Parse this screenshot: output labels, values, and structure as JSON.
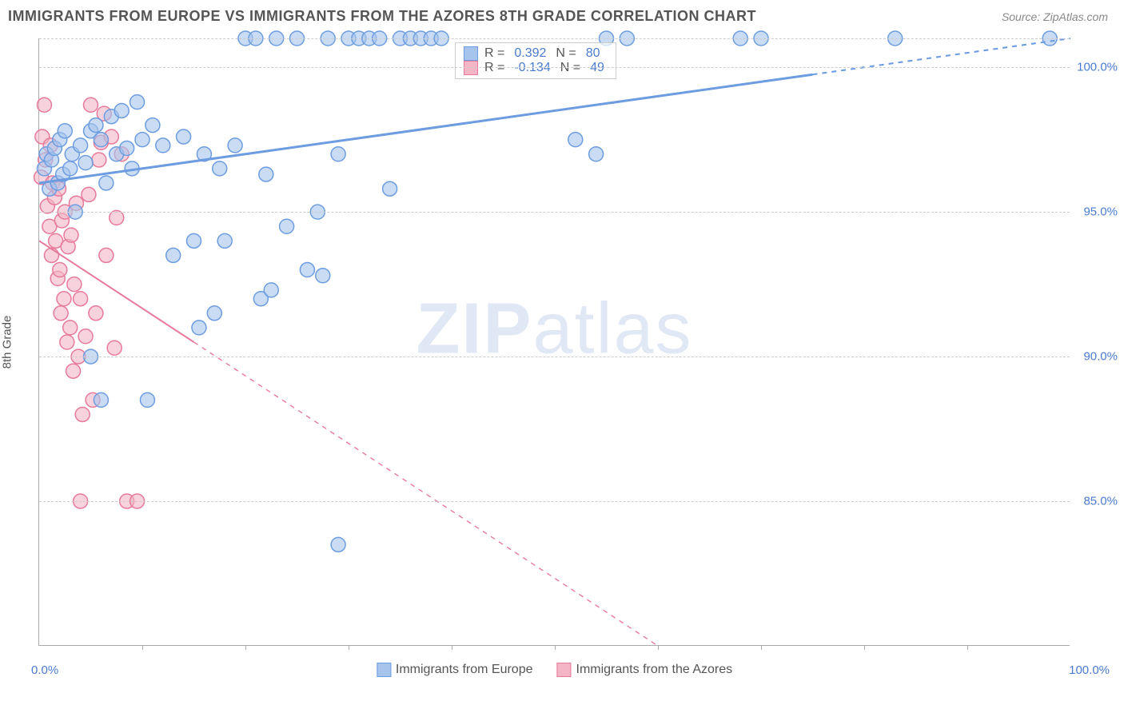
{
  "header": {
    "title": "IMMIGRANTS FROM EUROPE VS IMMIGRANTS FROM THE AZORES 8TH GRADE CORRELATION CHART",
    "source": "Source: ZipAtlas.com"
  },
  "chart": {
    "type": "scatter",
    "ylabel": "8th Grade",
    "xlim": [
      0,
      100
    ],
    "ylim": [
      80,
      101
    ],
    "x_ticks_minor": [
      10,
      20,
      30,
      40,
      50,
      60,
      70,
      80,
      90
    ],
    "y_gridlines": [
      85,
      90,
      95,
      100,
      101
    ],
    "y_tick_labels": {
      "85": "85.0%",
      "90": "90.0%",
      "95": "95.0%",
      "100": "100.0%"
    },
    "x_axis_label_left": "0.0%",
    "x_axis_label_right": "100.0%",
    "background_color": "#ffffff",
    "grid_color": "#cccccc",
    "axis_color": "#aaaaaa",
    "tick_label_color": "#4a7bd0",
    "series": [
      {
        "name": "Immigrants from Europe",
        "color_fill": "#a7c4ec",
        "color_stroke": "#6d9de0",
        "marker_radius": 9,
        "marker_opacity": 0.6,
        "r_value": "0.392",
        "n_value": "80",
        "trend": {
          "x1": 0,
          "y1": 96.0,
          "x2": 100,
          "y2": 101.0,
          "solid_until_x": 75,
          "stroke_width": 3
        },
        "points": [
          [
            0.5,
            96.5
          ],
          [
            0.7,
            97.0
          ],
          [
            1.0,
            95.8
          ],
          [
            1.2,
            96.8
          ],
          [
            1.5,
            97.2
          ],
          [
            1.8,
            96.0
          ],
          [
            2.0,
            97.5
          ],
          [
            2.3,
            96.3
          ],
          [
            2.5,
            97.8
          ],
          [
            3.0,
            96.5
          ],
          [
            3.2,
            97.0
          ],
          [
            3.5,
            95.0
          ],
          [
            4.0,
            97.3
          ],
          [
            4.5,
            96.7
          ],
          [
            5.0,
            97.8
          ],
          [
            5.5,
            98.0
          ],
          [
            6.0,
            97.5
          ],
          [
            6.5,
            96.0
          ],
          [
            7.0,
            98.3
          ],
          [
            7.5,
            97.0
          ],
          [
            8.0,
            98.5
          ],
          [
            8.5,
            97.2
          ],
          [
            9.0,
            96.5
          ],
          [
            9.5,
            98.8
          ],
          [
            10.0,
            97.5
          ],
          [
            5.0,
            90.0
          ],
          [
            6.0,
            88.5
          ],
          [
            10.5,
            88.5
          ],
          [
            11.0,
            98.0
          ],
          [
            12.0,
            97.3
          ],
          [
            13.0,
            93.5
          ],
          [
            14.0,
            97.6
          ],
          [
            15.0,
            94.0
          ],
          [
            15.5,
            91.0
          ],
          [
            16.0,
            97.0
          ],
          [
            17.0,
            91.5
          ],
          [
            17.5,
            96.5
          ],
          [
            18.0,
            94.0
          ],
          [
            19.0,
            97.3
          ],
          [
            20.0,
            101.0
          ],
          [
            21.0,
            101.0
          ],
          [
            21.5,
            92.0
          ],
          [
            22.0,
            96.3
          ],
          [
            22.5,
            92.3
          ],
          [
            23.0,
            101.0
          ],
          [
            24.0,
            94.5
          ],
          [
            25.0,
            101.0
          ],
          [
            26.0,
            93.0
          ],
          [
            27.0,
            95.0
          ],
          [
            27.5,
            92.8
          ],
          [
            28.0,
            101.0
          ],
          [
            29.0,
            97.0
          ],
          [
            29.0,
            83.5
          ],
          [
            30.0,
            101.0
          ],
          [
            31.0,
            101.0
          ],
          [
            32.0,
            101.0
          ],
          [
            33.0,
            101.0
          ],
          [
            34.0,
            95.8
          ],
          [
            35.0,
            101.0
          ],
          [
            36.0,
            101.0
          ],
          [
            37.0,
            101.0
          ],
          [
            38.0,
            101.0
          ],
          [
            39.0,
            101.0
          ],
          [
            52.0,
            97.5
          ],
          [
            54.0,
            97.0
          ],
          [
            55.0,
            101.0
          ],
          [
            57.0,
            101.0
          ],
          [
            68.0,
            101.0
          ],
          [
            70.0,
            101.0
          ],
          [
            83.0,
            101.0
          ],
          [
            98.0,
            101.0
          ]
        ]
      },
      {
        "name": "Immigrants from the Azores",
        "color_fill": "#f4b6c6",
        "color_stroke": "#e77a9a",
        "marker_radius": 9,
        "marker_opacity": 0.6,
        "r_value": "-0.134",
        "n_value": "49",
        "trend": {
          "x1": 0,
          "y1": 94.0,
          "x2": 60,
          "y2": 80.0,
          "solid_until_x": 15,
          "stroke_width": 2
        },
        "points": [
          [
            0.2,
            96.2
          ],
          [
            0.3,
            97.6
          ],
          [
            0.5,
            98.7
          ],
          [
            0.6,
            96.8
          ],
          [
            0.8,
            95.2
          ],
          [
            1.0,
            94.5
          ],
          [
            1.1,
            97.3
          ],
          [
            1.2,
            93.5
          ],
          [
            1.3,
            96.0
          ],
          [
            1.5,
            95.5
          ],
          [
            1.6,
            94.0
          ],
          [
            1.8,
            92.7
          ],
          [
            1.9,
            95.8
          ],
          [
            2.0,
            93.0
          ],
          [
            2.1,
            91.5
          ],
          [
            2.2,
            94.7
          ],
          [
            2.4,
            92.0
          ],
          [
            2.5,
            95.0
          ],
          [
            2.7,
            90.5
          ],
          [
            2.8,
            93.8
          ],
          [
            3.0,
            91.0
          ],
          [
            3.1,
            94.2
          ],
          [
            3.3,
            89.5
          ],
          [
            3.4,
            92.5
          ],
          [
            3.6,
            95.3
          ],
          [
            3.8,
            90.0
          ],
          [
            4.0,
            92.0
          ],
          [
            4.2,
            88.0
          ],
          [
            4.5,
            90.7
          ],
          [
            4.8,
            95.6
          ],
          [
            5.0,
            98.7
          ],
          [
            5.2,
            88.5
          ],
          [
            5.5,
            91.5
          ],
          [
            5.8,
            96.8
          ],
          [
            6.0,
            97.4
          ],
          [
            6.3,
            98.4
          ],
          [
            6.5,
            93.5
          ],
          [
            7.0,
            97.6
          ],
          [
            7.3,
            90.3
          ],
          [
            7.5,
            94.8
          ],
          [
            8.0,
            97.0
          ],
          [
            4.0,
            85.0
          ],
          [
            8.5,
            85.0
          ],
          [
            9.5,
            85.0
          ]
        ]
      }
    ],
    "legend_top": {
      "r_label": "R =",
      "n_label": "N ="
    },
    "legend_bottom": {
      "series1": "Immigrants from Europe",
      "series2": "Immigrants from the Azores"
    },
    "watermark": {
      "bold": "ZIP",
      "rest": "atlas"
    }
  }
}
